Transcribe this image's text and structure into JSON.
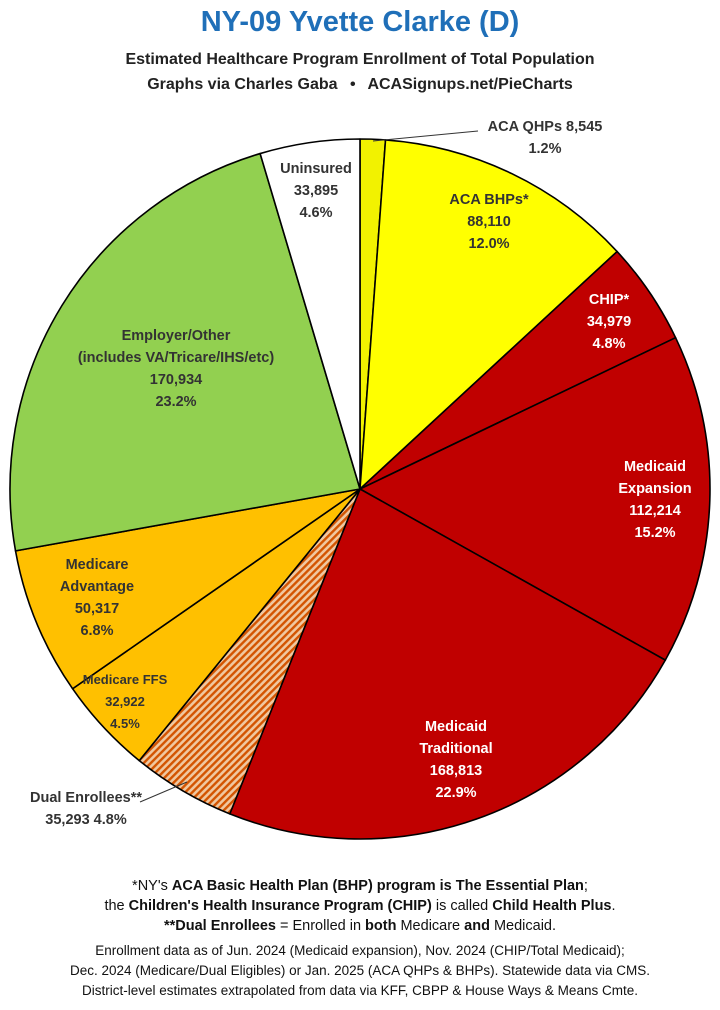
{
  "header": {
    "title": "NY-09 Yvette Clarke (D)",
    "subtitle": "Estimated Healthcare Program Enrollment of Total Population",
    "credit": "Graphs via Charles Gaba",
    "bullet": "•",
    "site": "ACASignups.net/PieCharts"
  },
  "chart_data": {
    "type": "pie",
    "title": "NY-09 Yvette Clarke (D)",
    "slices": [
      {
        "label": "ACA QHPs",
        "label_lines": [
          "ACA QHPs 8,545"
        ],
        "value": 8545,
        "value_text": "",
        "percent": "1.2%",
        "color": "#f2f200",
        "pattern": false,
        "label_color": "#333333",
        "label_pos": "outside-top"
      },
      {
        "label": "ACA BHPs*",
        "label_lines": [
          "ACA BHPs*"
        ],
        "value": 88110,
        "value_text": "88,110",
        "percent": "12.0%",
        "color": "#ffff00",
        "pattern": false,
        "label_color": "#333333",
        "label_pos": "inside"
      },
      {
        "label": "CHIP*",
        "label_lines": [
          "CHIP*"
        ],
        "value": 34979,
        "value_text": "34,979",
        "percent": "4.8%",
        "color": "#c00000",
        "pattern": false,
        "label_color": "#ffffff",
        "label_pos": "inside"
      },
      {
        "label": "Medicaid Expansion",
        "label_lines": [
          "Medicaid",
          "Expansion"
        ],
        "value": 112214,
        "value_text": "112,214",
        "percent": "15.2%",
        "color": "#c00000",
        "pattern": false,
        "label_color": "#ffffff",
        "label_pos": "inside"
      },
      {
        "label": "Medicaid Traditional",
        "label_lines": [
          "Medicaid",
          "Traditional"
        ],
        "value": 168813,
        "value_text": "168,813",
        "percent": "22.9%",
        "color": "#c00000",
        "pattern": false,
        "label_color": "#ffffff",
        "label_pos": "inside"
      },
      {
        "label": "Dual Enrollees**",
        "label_lines": [
          "Dual Enrollees**"
        ],
        "value": 35293,
        "value_text": "35,293 4.8%",
        "percent": "",
        "color": "#d96a1e",
        "pattern": true,
        "label_color": "#333333",
        "label_pos": "outside-bottom"
      },
      {
        "label": "Medicare FFS",
        "label_lines": [
          "Medicare FFS"
        ],
        "value": 32922,
        "value_text": "32,922",
        "percent": "4.5%",
        "color": "#ffc000",
        "pattern": false,
        "label_color": "#333333",
        "label_pos": "inside"
      },
      {
        "label": "Medicare Advantage",
        "label_lines": [
          "Medicare",
          "Advantage"
        ],
        "value": 50317,
        "value_text": "50,317",
        "percent": "6.8%",
        "color": "#ffc000",
        "pattern": false,
        "label_color": "#333333",
        "label_pos": "inside"
      },
      {
        "label": "Employer/Other (includes VA/Tricare/IHS/etc)",
        "label_lines": [
          "Employer/Other",
          "(includes VA/Tricare/IHS/etc)"
        ],
        "value": 170934,
        "value_text": "170,934",
        "percent": "23.2%",
        "color": "#92d050",
        "pattern": false,
        "label_color": "#333333",
        "label_pos": "inside"
      },
      {
        "label": "Uninsured",
        "label_lines": [
          "Uninsured"
        ],
        "value": 33895,
        "value_text": "33,895",
        "percent": "4.6%",
        "color": "#ffffff",
        "pattern": false,
        "label_color": "#333333",
        "label_pos": "inside"
      }
    ]
  },
  "footnotes": {
    "line1": {
      "a": "*NY's ",
      "b": "ACA Basic Health Plan (BHP) program is The Essential Plan",
      "c": ";"
    },
    "line2": {
      "a": "the ",
      "b": "Children's Health Insurance Program (CHIP)",
      "c": " is called ",
      "d": "Child Health Plus",
      "e": "."
    },
    "line3": {
      "a": "**Dual Enrollees",
      "b": " = Enrolled in ",
      "c": "both",
      "d": " Medicare ",
      "e": "and",
      "f": " Medicaid."
    }
  },
  "sources": {
    "line1": "Enrollment data as of Jun. 2024 (Medicaid expansion), Nov. 2024 (CHIP/Total Medicaid);",
    "line2": "Dec. 2024 (Medicare/Dual Eligibles) or Jan. 2025 (ACA QHPs & BHPs). Statewide data via CMS.",
    "line3": "District-level estimates extrapolated from data via KFF, CBPP & House Ways & Means Cmte."
  }
}
